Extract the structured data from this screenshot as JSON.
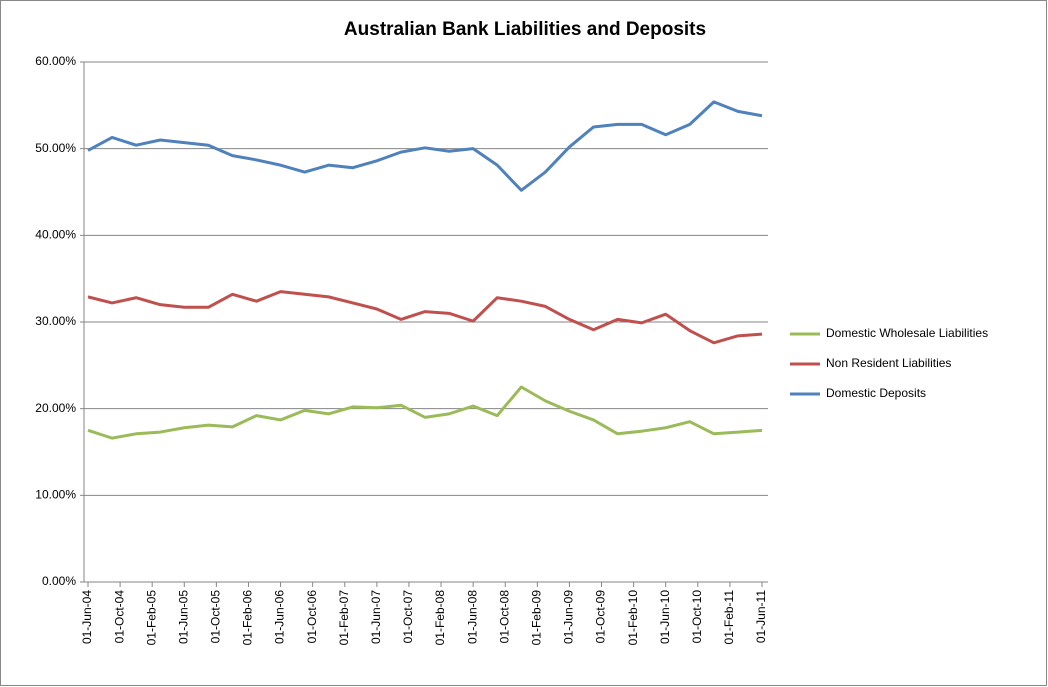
{
  "chart_data": {
    "type": "line",
    "title": "Australian Bank Liabilities and Deposits",
    "x": [
      "2004-06-01",
      "2004-09-01",
      "2004-12-01",
      "2005-03-01",
      "2005-06-01",
      "2005-09-01",
      "2005-12-01",
      "2006-03-01",
      "2006-06-01",
      "2006-09-01",
      "2006-12-01",
      "2007-03-01",
      "2007-06-01",
      "2007-09-01",
      "2007-12-01",
      "2008-03-01",
      "2008-06-01",
      "2008-09-01",
      "2008-12-01",
      "2009-03-01",
      "2009-06-01",
      "2009-09-01",
      "2009-12-01",
      "2010-03-01",
      "2010-06-01",
      "2010-09-01",
      "2010-12-01",
      "2011-03-01",
      "2011-06-01"
    ],
    "xlim": [
      "2004-06-01",
      "2011-06-01"
    ],
    "xticks": [
      {
        "value": "2004-06-01",
        "label": "01-Jun-04"
      },
      {
        "value": "2004-10-01",
        "label": "01-Oct-04"
      },
      {
        "value": "2005-02-01",
        "label": "01-Feb-05"
      },
      {
        "value": "2005-06-01",
        "label": "01-Jun-05"
      },
      {
        "value": "2005-10-01",
        "label": "01-Oct-05"
      },
      {
        "value": "2006-02-01",
        "label": "01-Feb-06"
      },
      {
        "value": "2006-06-01",
        "label": "01-Jun-06"
      },
      {
        "value": "2006-10-01",
        "label": "01-Oct-06"
      },
      {
        "value": "2007-02-01",
        "label": "01-Feb-07"
      },
      {
        "value": "2007-06-01",
        "label": "01-Jun-07"
      },
      {
        "value": "2007-10-01",
        "label": "01-Oct-07"
      },
      {
        "value": "2008-02-01",
        "label": "01-Feb-08"
      },
      {
        "value": "2008-06-01",
        "label": "01-Jun-08"
      },
      {
        "value": "2008-10-01",
        "label": "01-Oct-08"
      },
      {
        "value": "2009-02-01",
        "label": "01-Feb-09"
      },
      {
        "value": "2009-06-01",
        "label": "01-Jun-09"
      },
      {
        "value": "2009-10-01",
        "label": "01-Oct-09"
      },
      {
        "value": "2010-02-01",
        "label": "01-Feb-10"
      },
      {
        "value": "2010-06-01",
        "label": "01-Jun-10"
      },
      {
        "value": "2010-10-01",
        "label": "01-Oct-10"
      },
      {
        "value": "2011-02-01",
        "label": "01-Feb-11"
      },
      {
        "value": "2011-06-01",
        "label": "01-Jun-11"
      }
    ],
    "ylim": [
      0,
      60
    ],
    "yticks": [
      {
        "value": 0,
        "label": "0.00%"
      },
      {
        "value": 10,
        "label": "10.00%"
      },
      {
        "value": 20,
        "label": "20.00%"
      },
      {
        "value": 30,
        "label": "30.00%"
      },
      {
        "value": 40,
        "label": "40.00%"
      },
      {
        "value": 50,
        "label": "50.00%"
      },
      {
        "value": 60,
        "label": "60.00%"
      }
    ],
    "grid": true,
    "legend": "right",
    "series": [
      {
        "name": "Domestic Wholesale Liabilities",
        "color": "#9bbb59",
        "values": [
          17.5,
          16.6,
          17.1,
          17.3,
          17.8,
          18.1,
          17.9,
          19.2,
          18.7,
          19.8,
          19.4,
          20.2,
          20.1,
          20.4,
          19.0,
          19.4,
          20.3,
          19.2,
          22.5,
          20.9,
          19.7,
          18.7,
          17.1,
          17.4,
          17.8,
          18.5,
          17.1,
          17.3,
          17.5
        ]
      },
      {
        "name": "Non Resident Liabilities",
        "color": "#c0504d",
        "values": [
          32.9,
          32.2,
          32.8,
          32.0,
          31.7,
          31.7,
          33.2,
          32.4,
          33.5,
          33.2,
          32.9,
          32.2,
          31.5,
          30.3,
          31.2,
          31.0,
          30.1,
          32.8,
          32.4,
          31.8,
          30.3,
          29.1,
          30.3,
          29.9,
          30.9,
          29.0,
          27.6,
          28.4,
          28.6
        ]
      },
      {
        "name": "Domestic Deposits",
        "color": "#4f81bd",
        "values": [
          49.8,
          51.3,
          50.4,
          51.0,
          50.7,
          50.4,
          49.2,
          48.7,
          48.1,
          47.3,
          48.1,
          47.8,
          48.6,
          49.6,
          50.1,
          49.7,
          50.0,
          48.1,
          45.2,
          47.3,
          50.2,
          52.5,
          52.8,
          52.8,
          51.6,
          52.8,
          55.4,
          54.3,
          53.8
        ]
      }
    ]
  }
}
